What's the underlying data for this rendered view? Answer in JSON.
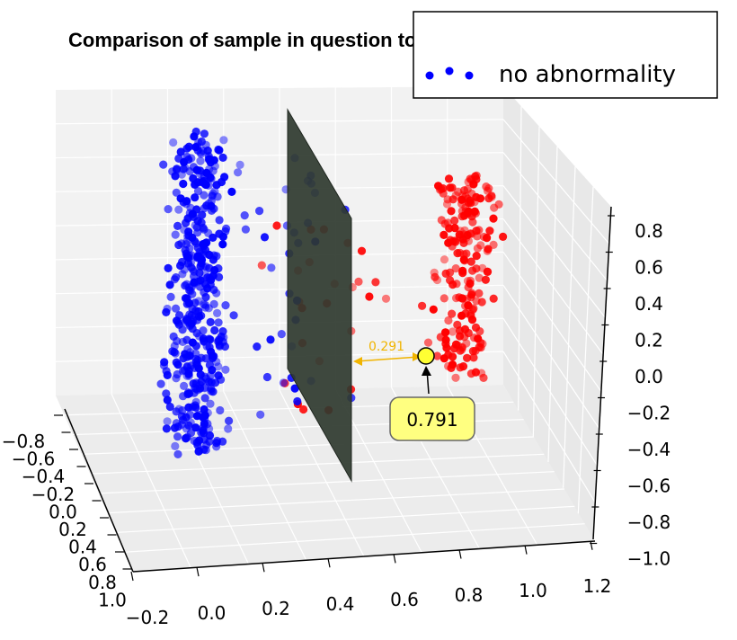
{
  "chart_data": {
    "type": "scatter",
    "projection": "3d",
    "title": "Comparison of sample in question to database",
    "legend": {
      "placement": "top-right",
      "entries": [
        {
          "label": "no abnormality",
          "color": "#0000ff"
        }
      ]
    },
    "axes": {
      "x": {
        "ticks": [
          "−0.2",
          "0.0",
          "0.2",
          "0.4",
          "0.6",
          "0.8",
          "1.0",
          "1.2"
        ],
        "range": [
          -0.2,
          1.2
        ]
      },
      "y": {
        "ticks": [
          "−0.8",
          "−0.6",
          "−0.4",
          "−0.2",
          "0.0",
          "0.2",
          "0.4",
          "0.6",
          "0.8",
          "1.0"
        ],
        "range": [
          -0.8,
          1.0
        ]
      },
      "z": {
        "ticks": [
          "0.8",
          "0.6",
          "0.4",
          "0.2",
          "0.0",
          "−0.2",
          "−0.4",
          "−0.6",
          "−0.8",
          "−1.0"
        ],
        "range": [
          -1.0,
          0.8
        ]
      },
      "grid": true
    },
    "series": [
      {
        "name": "no abnormality",
        "color": "#0000ff",
        "x_center": 0.0,
        "x_spread": 0.08,
        "count": 420
      },
      {
        "color": "#ff0000",
        "x_center": 0.9,
        "x_spread": 0.08,
        "count": 200
      },
      {
        "color": "#ff0000",
        "x_center": 0.45,
        "x_spread": 0.2,
        "count": 25
      },
      {
        "color": "#0000ff",
        "x_center": 0.3,
        "x_spread": 0.2,
        "count": 35
      }
    ],
    "separating_plane": {
      "x": 0.5,
      "color": "#2f3a2f"
    },
    "sample": {
      "x": 0.8,
      "y": 0.0,
      "z": 0.0,
      "color": "#ffff33"
    },
    "distance_label": "0.291",
    "distance_color": "#f0b400",
    "callout": {
      "label": "0.791",
      "fill": "#ffff80"
    }
  }
}
